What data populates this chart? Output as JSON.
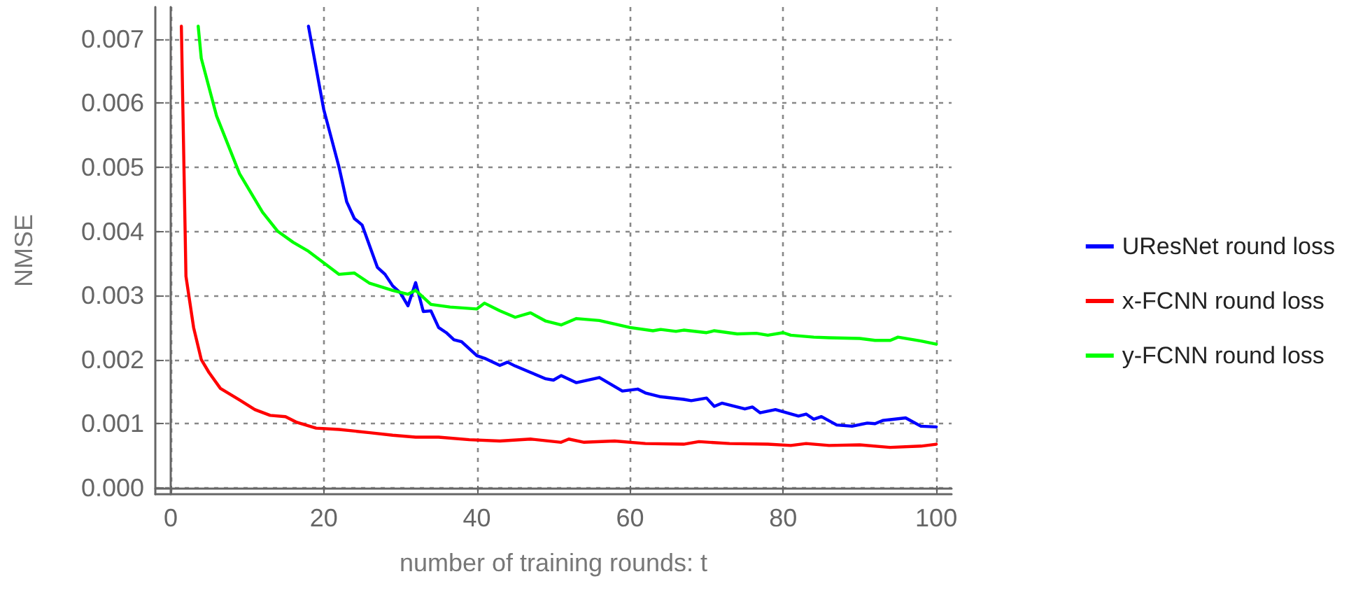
{
  "chart_data": {
    "type": "line",
    "xlabel": "number of training rounds: t",
    "ylabel": "NMSE",
    "xlim": [
      -2,
      102
    ],
    "xticks": [
      0,
      20,
      40,
      60,
      80,
      100
    ],
    "ylim": [
      -0.0001,
      0.0075
    ],
    "yticks": [
      {
        "value": 0,
        "label": "0.000"
      },
      {
        "value": 0.001,
        "label": "0.001"
      },
      {
        "value": 0.002,
        "label": "0.002"
      },
      {
        "value": 0.003,
        "label": "0.003"
      },
      {
        "value": 0.004,
        "label": "0.004"
      },
      {
        "value": 0.005,
        "label": "0.005"
      },
      {
        "value": 0.006,
        "label": "0.006"
      },
      {
        "value": 0.007,
        "label": "0.007"
      }
    ],
    "grid": true,
    "legend": "right",
    "series": [
      {
        "name": "UResNet round loss",
        "color": "#0000ff",
        "x": [
          18,
          20,
          22,
          23,
          24,
          25,
          27,
          28,
          29,
          30,
          31,
          32,
          33,
          34,
          35,
          36,
          37,
          38,
          40,
          41,
          43,
          44,
          45,
          47,
          49,
          50,
          51,
          53,
          56,
          59,
          61,
          62,
          64,
          67,
          68,
          70,
          71,
          72,
          75,
          76,
          77,
          79,
          82,
          83,
          84,
          85,
          87,
          89,
          91,
          92,
          93,
          96,
          98,
          100
        ],
        "values": [
          0.0072,
          0.0059,
          0.005,
          0.00446,
          0.0042,
          0.0041,
          0.00344,
          0.00333,
          0.00315,
          0.00304,
          0.00284,
          0.0032,
          0.00275,
          0.00276,
          0.0025,
          0.00242,
          0.00231,
          0.00228,
          0.00206,
          0.00202,
          0.00191,
          0.00196,
          0.0019,
          0.0018,
          0.0017,
          0.00168,
          0.00175,
          0.00164,
          0.00172,
          0.00151,
          0.00154,
          0.00148,
          0.00142,
          0.00138,
          0.00136,
          0.0014,
          0.00127,
          0.00132,
          0.00123,
          0.00126,
          0.00117,
          0.00122,
          0.00112,
          0.00115,
          0.00107,
          0.00111,
          0.00098,
          0.00096,
          0.00101,
          0.001,
          0.00105,
          0.00109,
          0.00096,
          0.00095
        ]
      },
      {
        "name": "x-FCNN round loss",
        "color": "#ff0000",
        "x": [
          1.4,
          2,
          3,
          4,
          5,
          6.5,
          9,
          11,
          13,
          15,
          16.5,
          19,
          22,
          26,
          29,
          32,
          35,
          39,
          43,
          47,
          51,
          52,
          54,
          58,
          62,
          67,
          69,
          73,
          78,
          81,
          83,
          86,
          90,
          94,
          98,
          100
        ],
        "values": [
          0.0072,
          0.0033,
          0.0025,
          0.002,
          0.0018,
          0.00155,
          0.00137,
          0.00122,
          0.00113,
          0.00111,
          0.00102,
          0.00093,
          0.00091,
          0.00086,
          0.00082,
          0.00079,
          0.00079,
          0.00075,
          0.00073,
          0.00076,
          0.00071,
          0.00076,
          0.00071,
          0.00073,
          0.00069,
          0.00068,
          0.00072,
          0.00069,
          0.00068,
          0.00066,
          0.00069,
          0.00066,
          0.00067,
          0.00063,
          0.00065,
          0.00068
        ]
      },
      {
        "name": "y-FCNN round loss",
        "color": "#00ff00",
        "x": [
          3.6,
          4,
          6,
          9,
          12,
          14,
          16,
          18,
          20,
          22,
          24,
          26,
          29,
          31,
          32,
          34,
          36.5,
          40,
          41,
          43,
          45,
          47,
          49,
          51,
          53,
          56,
          60,
          63,
          64,
          66,
          67,
          70,
          71,
          74,
          76.5,
          78,
          80,
          81,
          84,
          86,
          90,
          92,
          94,
          95,
          98,
          100
        ],
        "values": [
          0.0072,
          0.0067,
          0.0058,
          0.0049,
          0.0043,
          0.004,
          0.00383,
          0.00369,
          0.00351,
          0.00333,
          0.00335,
          0.00319,
          0.00308,
          0.00302,
          0.00308,
          0.00286,
          0.00282,
          0.00279,
          0.00288,
          0.00276,
          0.00266,
          0.00273,
          0.0026,
          0.00254,
          0.00264,
          0.00261,
          0.0025,
          0.00245,
          0.00247,
          0.00244,
          0.00246,
          0.00242,
          0.00245,
          0.0024,
          0.00241,
          0.00238,
          0.00242,
          0.00238,
          0.00235,
          0.00234,
          0.00233,
          0.0023,
          0.0023,
          0.00235,
          0.00229,
          0.00224
        ]
      }
    ]
  }
}
